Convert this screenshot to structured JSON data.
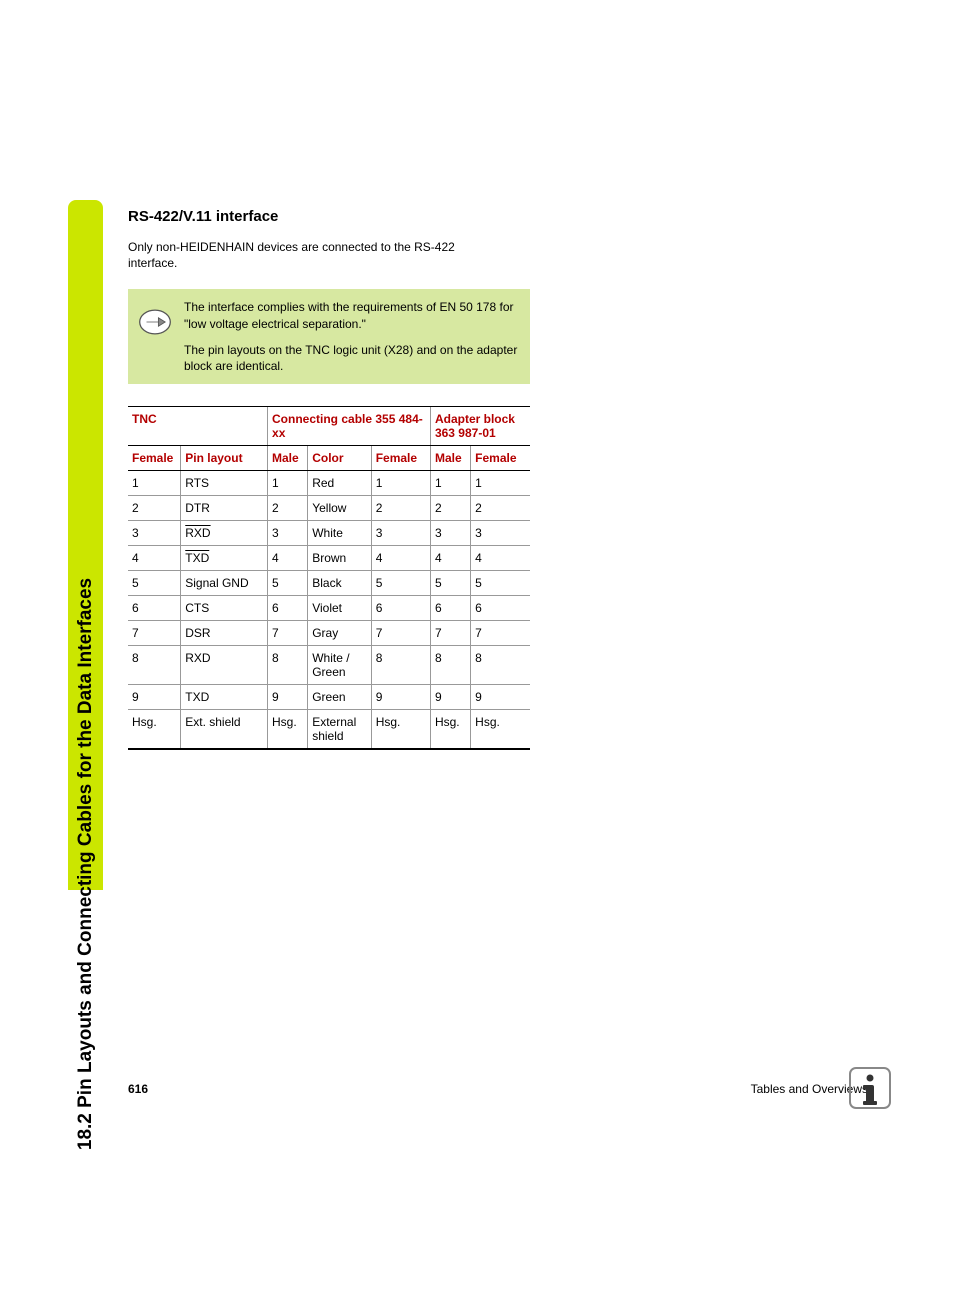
{
  "sidebar": {
    "title": "18.2 Pin Layouts and Connecting Cables for the Data Interfaces",
    "tab_color": "#cbe600"
  },
  "heading": "RS-422/V.11 interface",
  "intro": "Only non-HEIDENHAIN devices are connected to the RS-422 interface.",
  "note": {
    "bg_color": "#d7e8a1",
    "para1": "The interface complies with the requirements of EN 50 178 for \"low voltage electrical separation.\"",
    "para2": "The pin layouts on the TNC logic unit (X28) and on the adapter block are identical."
  },
  "table": {
    "group_headers": {
      "tnc": "TNC",
      "cable": "Connecting cable 355 484-xx",
      "adapter": "Adapter block 363 987-01"
    },
    "sub_headers": {
      "female1": "Female",
      "pinlayout": "Pin layout",
      "male": "Male",
      "color": "Color",
      "female2": "Female",
      "male2": "Male",
      "female3": "Female"
    },
    "header_color": "#b30000",
    "rows": [
      {
        "c0": "1",
        "c1": "RTS",
        "c1_over": false,
        "c2": "1",
        "c3": "Red",
        "c4": "1",
        "c5": "1",
        "c6": "1"
      },
      {
        "c0": "2",
        "c1": "DTR",
        "c1_over": false,
        "c2": "2",
        "c3": "Yellow",
        "c4": "2",
        "c5": "2",
        "c6": "2"
      },
      {
        "c0": "3",
        "c1": "RXD",
        "c1_over": true,
        "c2": "3",
        "c3": "White",
        "c4": "3",
        "c5": "3",
        "c6": "3"
      },
      {
        "c0": "4",
        "c1": "TXD",
        "c1_over": true,
        "c2": "4",
        "c3": "Brown",
        "c4": "4",
        "c5": "4",
        "c6": "4"
      },
      {
        "c0": "5",
        "c1": "Signal GND",
        "c1_over": false,
        "c2": "5",
        "c3": "Black",
        "c4": "5",
        "c5": "5",
        "c6": "5"
      },
      {
        "c0": "6",
        "c1": "CTS",
        "c1_over": false,
        "c2": "6",
        "c3": "Violet",
        "c4": "6",
        "c5": "6",
        "c6": "6"
      },
      {
        "c0": "7",
        "c1": "DSR",
        "c1_over": false,
        "c2": "7",
        "c3": "Gray",
        "c4": "7",
        "c5": "7",
        "c6": "7"
      },
      {
        "c0": "8",
        "c1": "RXD",
        "c1_over": false,
        "c2": "8",
        "c3": "White / Green",
        "c4": "8",
        "c5": "8",
        "c6": "8"
      },
      {
        "c0": "9",
        "c1": "TXD",
        "c1_over": false,
        "c2": "9",
        "c3": "Green",
        "c4": "9",
        "c5": "9",
        "c6": "9"
      },
      {
        "c0": "Hsg.",
        "c1": "Ext. shield",
        "c1_over": false,
        "c2": "Hsg.",
        "c3": "External shield",
        "c4": "Hsg.",
        "c5": "Hsg.",
        "c6": "Hsg."
      }
    ],
    "col_widths": [
      "48px",
      "82px",
      "38px",
      "60px",
      "56px",
      "38px",
      "56px"
    ]
  },
  "footer": {
    "page_num": "616",
    "right_text": "Tables and Overviews"
  }
}
